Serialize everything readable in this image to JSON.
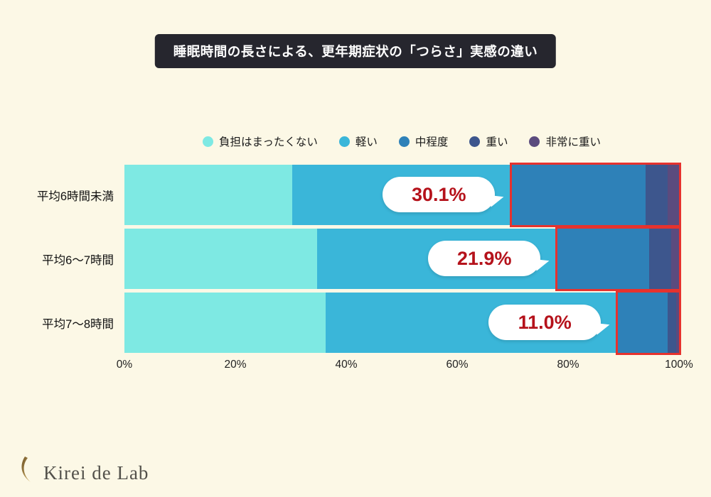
{
  "title": "睡眠時間の長さによる、更年期症状の「つらさ」実感の違い",
  "logo": {
    "text": "Kirei de Lab",
    "icon": "crescent-leaf-icon"
  },
  "colors": {
    "background": "#FCF8E6",
    "title_bg": "#26262E",
    "title_text": "#FFFFFF",
    "highlight_border": "#E6322E",
    "highlight_text": "#B5121B",
    "axis_text": "#222222"
  },
  "chart_data": {
    "type": "bar",
    "orientation": "horizontal",
    "stacked": true,
    "title": "睡眠時間の長さによる、更年期症状の「つらさ」実感の違い",
    "categories": [
      "平均6時間未満",
      "平均6〜7時間",
      "平均7〜8時間"
    ],
    "series": [
      {
        "name": "負担はまったくない",
        "color": "#7EE9E3",
        "values": [
          30.3,
          34.7,
          36.3
        ]
      },
      {
        "name": "軽い",
        "color": "#3AB6D9",
        "values": [
          39.6,
          43.4,
          52.7
        ]
      },
      {
        "name": "中程度",
        "color": "#2E81B8",
        "values": [
          24.1,
          16.5,
          9.0
        ]
      },
      {
        "name": "重い",
        "color": "#3D568D",
        "values": [
          4.0,
          4.0,
          1.5
        ]
      },
      {
        "name": "非常に重い",
        "color": "#5B4B7E",
        "values": [
          2.0,
          1.4,
          0.5
        ]
      }
    ],
    "highlights": [
      {
        "row": 0,
        "label": "30.1%",
        "span": 30.1
      },
      {
        "row": 1,
        "label": "21.9%",
        "span": 21.9
      },
      {
        "row": 2,
        "label": "11.0%",
        "span": 11.0
      }
    ],
    "x_ticks": [
      "0%",
      "20%",
      "40%",
      "60%",
      "80%",
      "100%"
    ],
    "xlim": [
      0,
      100
    ],
    "legend_position": "top",
    "grid": false
  }
}
